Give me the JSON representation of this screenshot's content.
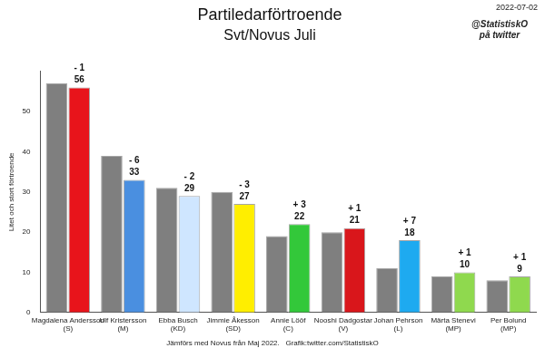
{
  "chart_data": {
    "type": "bar",
    "title": "Partiledarförtroende",
    "subtitle": "Svt/Novus Juli",
    "date": "2022-07-02",
    "credit": [
      "@StatistiskO",
      "på twitter"
    ],
    "footer": "Jämförs med Novus från Maj 2022.   Grafik:twitter.com/StatistiskO",
    "y_label": "Litet och stort förtroende",
    "categories": [
      "Magdalena Andersson (S)",
      "Ulf Kristersson (M)",
      "Ebba Busch (KD)",
      "Jimmie Åkesson (SD)",
      "Annie Lööf (C)",
      "Nooshi Dadgostar (V)",
      "Johan Pehrson (L)",
      "Märta Stenevi (MP)",
      "Per Bolund (MP)"
    ],
    "series": [
      {
        "color": "#7f7f7f",
        "values": [
          57,
          39,
          31,
          30,
          19,
          20,
          11,
          9,
          8
        ],
        "data_labels": false
      },
      {
        "colors": [
          "#e8141b",
          "#4a8fe0",
          "#cfe6ff",
          "#ffee00",
          "#33c83a",
          "#d9161b",
          "#1eaaf0",
          "#8fd94e",
          "#8fd94e"
        ],
        "values": [
          56,
          33,
          29,
          27,
          22,
          21,
          18,
          10,
          9
        ],
        "data_labels": true,
        "changes": [
          -1,
          -6,
          -2,
          -3,
          3,
          1,
          7,
          1,
          1
        ],
        "change_labels": [
          "- 1",
          "- 6",
          "- 2",
          "- 3",
          "+ 3",
          "+ 1",
          "+ 7",
          "+ 1",
          "+ 1"
        ]
      }
    ],
    "ylim": [
      0,
      60
    ],
    "yticks": [
      0,
      10,
      20,
      30,
      40,
      50
    ],
    "grid": false
  }
}
